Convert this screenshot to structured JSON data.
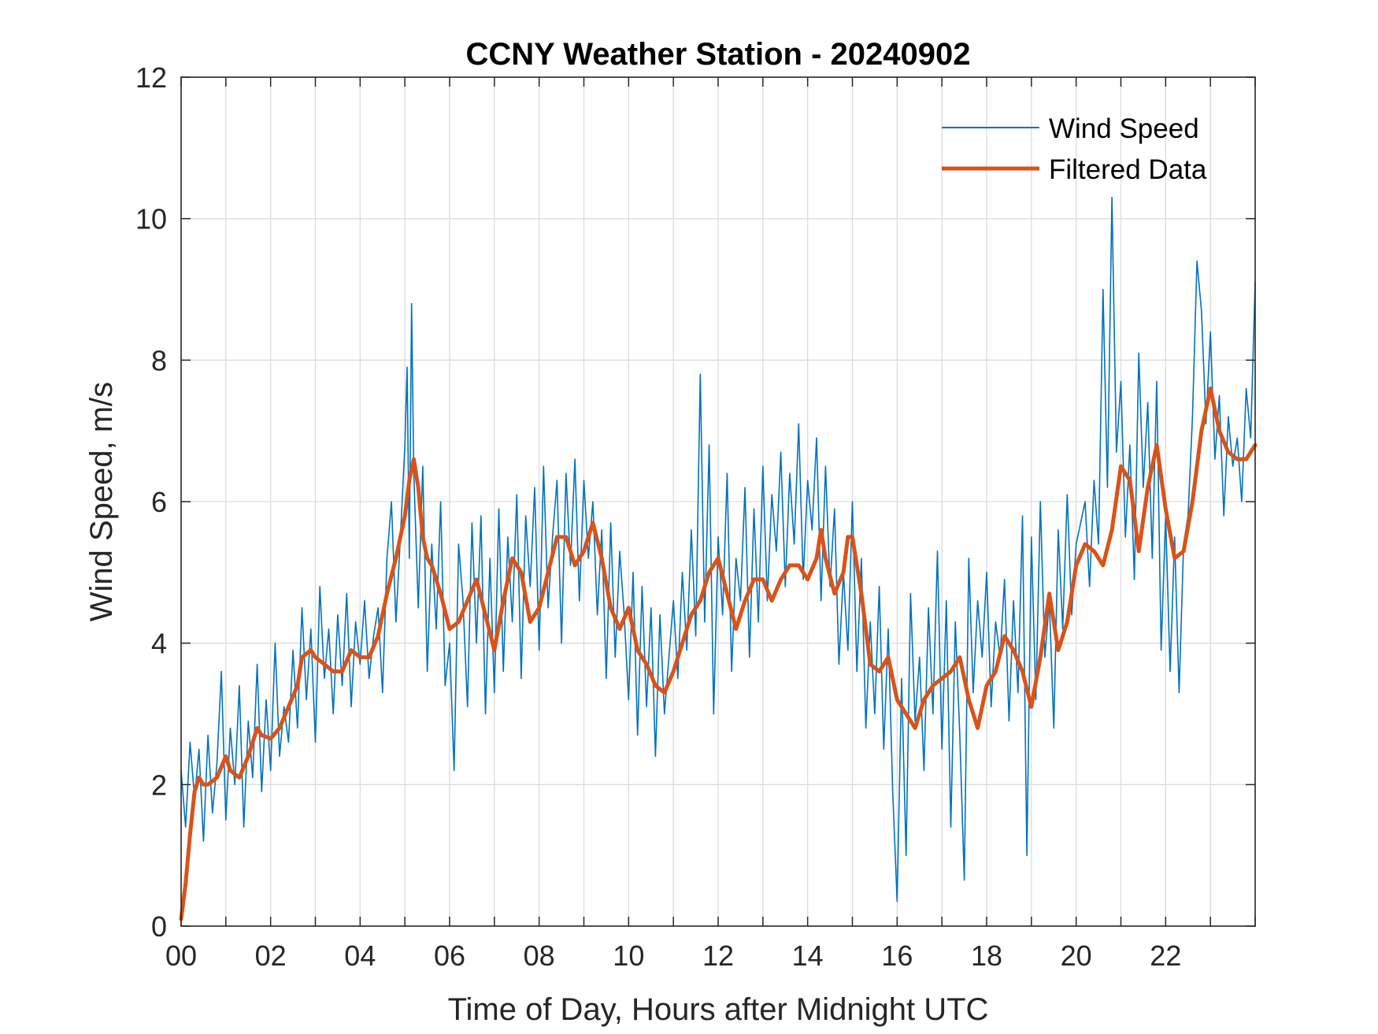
{
  "chart_data": {
    "type": "line",
    "title": "CCNY Weather Station - 20240902",
    "xlabel": "Time of Day, Hours after Midnight UTC",
    "ylabel": "Wind Speed, m/s",
    "xlim": [
      0,
      24
    ],
    "ylim": [
      0,
      12
    ],
    "xticks": [
      0,
      2,
      4,
      6,
      8,
      10,
      12,
      14,
      16,
      18,
      20,
      22
    ],
    "xtick_labels": [
      "00",
      "02",
      "04",
      "06",
      "08",
      "10",
      "12",
      "14",
      "16",
      "18",
      "20",
      "22"
    ],
    "yticks": [
      0,
      2,
      4,
      6,
      8,
      10,
      12
    ],
    "ytick_labels": [
      "0",
      "2",
      "4",
      "6",
      "8",
      "10",
      "12"
    ],
    "grid": true,
    "minor_x_grid_step": 1,
    "legend_position": "top-right",
    "series": [
      {
        "name": "Wind Speed",
        "color": "#0072BD",
        "style": "thin",
        "x": [
          0.0,
          0.1,
          0.2,
          0.3,
          0.4,
          0.5,
          0.6,
          0.7,
          0.8,
          0.9,
          1.0,
          1.1,
          1.2,
          1.3,
          1.4,
          1.5,
          1.6,
          1.7,
          1.8,
          1.9,
          2.0,
          2.1,
          2.2,
          2.3,
          2.4,
          2.5,
          2.6,
          2.7,
          2.8,
          2.9,
          3.0,
          3.1,
          3.2,
          3.3,
          3.4,
          3.5,
          3.6,
          3.7,
          3.8,
          3.9,
          4.0,
          4.1,
          4.2,
          4.3,
          4.4,
          4.5,
          4.6,
          4.7,
          4.8,
          4.9,
          5.0,
          5.05,
          5.1,
          5.15,
          5.2,
          5.3,
          5.4,
          5.5,
          5.6,
          5.7,
          5.8,
          5.9,
          6.0,
          6.1,
          6.2,
          6.3,
          6.4,
          6.5,
          6.6,
          6.7,
          6.8,
          6.9,
          7.0,
          7.1,
          7.2,
          7.3,
          7.4,
          7.5,
          7.6,
          7.7,
          7.8,
          7.9,
          8.0,
          8.1,
          8.2,
          8.3,
          8.4,
          8.5,
          8.6,
          8.7,
          8.8,
          8.9,
          9.0,
          9.1,
          9.2,
          9.3,
          9.4,
          9.5,
          9.6,
          9.7,
          9.8,
          9.9,
          10.0,
          10.1,
          10.2,
          10.3,
          10.4,
          10.5,
          10.6,
          10.7,
          10.8,
          10.9,
          11.0,
          11.1,
          11.2,
          11.3,
          11.4,
          11.5,
          11.6,
          11.7,
          11.8,
          11.9,
          12.0,
          12.1,
          12.2,
          12.3,
          12.4,
          12.5,
          12.6,
          12.7,
          12.8,
          12.9,
          13.0,
          13.1,
          13.2,
          13.3,
          13.4,
          13.5,
          13.6,
          13.7,
          13.8,
          13.9,
          14.0,
          14.1,
          14.2,
          14.3,
          14.4,
          14.5,
          14.6,
          14.7,
          14.8,
          14.9,
          15.0,
          15.1,
          15.2,
          15.3,
          15.4,
          15.5,
          15.6,
          15.7,
          15.8,
          15.9,
          16.0,
          16.1,
          16.2,
          16.3,
          16.4,
          16.5,
          16.6,
          16.7,
          16.8,
          16.9,
          17.0,
          17.1,
          17.2,
          17.3,
          17.4,
          17.5,
          17.6,
          17.7,
          17.8,
          17.9,
          18.0,
          18.1,
          18.2,
          18.3,
          18.4,
          18.5,
          18.6,
          18.7,
          18.8,
          18.9,
          19.0,
          19.1,
          19.2,
          19.3,
          19.4,
          19.5,
          19.6,
          19.7,
          19.8,
          19.9,
          20.0,
          20.1,
          20.2,
          20.3,
          20.4,
          20.5,
          20.6,
          20.7,
          20.8,
          20.9,
          21.0,
          21.1,
          21.2,
          21.3,
          21.4,
          21.5,
          21.6,
          21.7,
          21.8,
          21.9,
          22.0,
          22.1,
          22.2,
          22.3,
          22.4,
          22.5,
          22.6,
          22.7,
          22.8,
          22.9,
          23.0,
          23.1,
          23.2,
          23.3,
          23.4,
          23.5,
          23.6,
          23.7,
          23.8,
          23.9,
          24.0
        ],
        "y": [
          2.2,
          1.4,
          2.6,
          1.8,
          2.5,
          1.2,
          2.7,
          1.6,
          2.3,
          3.6,
          1.5,
          2.8,
          2.0,
          3.4,
          1.4,
          2.9,
          2.1,
          3.7,
          1.9,
          3.2,
          2.2,
          4.0,
          2.4,
          3.1,
          2.6,
          3.9,
          2.8,
          4.5,
          3.2,
          4.2,
          2.6,
          4.8,
          3.5,
          4.2,
          3.0,
          4.4,
          3.4,
          4.7,
          3.1,
          4.3,
          3.7,
          4.6,
          3.5,
          4.1,
          4.5,
          3.3,
          5.2,
          6.0,
          4.3,
          5.5,
          6.8,
          7.9,
          5.2,
          8.8,
          6.4,
          4.5,
          6.5,
          3.6,
          5.4,
          4.2,
          6.0,
          3.4,
          4.0,
          2.2,
          5.4,
          4.6,
          3.1,
          5.7,
          4.0,
          5.8,
          3.0,
          5.2,
          3.3,
          5.9,
          3.6,
          5.5,
          4.3,
          6.1,
          3.5,
          5.8,
          4.8,
          6.2,
          3.9,
          6.5,
          4.5,
          5.5,
          6.3,
          4.0,
          6.4,
          5.1,
          6.6,
          4.6,
          6.3,
          5.2,
          6.0,
          4.4,
          5.6,
          3.5,
          5.7,
          3.8,
          5.3,
          4.4,
          3.2,
          5.0,
          2.7,
          4.8,
          3.1,
          4.5,
          2.4,
          4.4,
          3.0,
          3.8,
          4.6,
          3.5,
          5.0,
          3.9,
          5.6,
          4.1,
          7.8,
          4.3,
          6.8,
          3.0,
          5.5,
          4.4,
          6.4,
          3.6,
          5.2,
          4.6,
          6.2,
          3.8,
          5.9,
          4.3,
          6.5,
          4.6,
          6.1,
          5.3,
          6.7,
          4.8,
          6.4,
          5.4,
          7.1,
          4.9,
          6.3,
          5.6,
          6.9,
          4.6,
          6.5,
          4.8,
          5.9,
          3.7,
          5.0,
          3.9,
          6.0,
          3.6,
          5.2,
          2.8,
          4.3,
          3.0,
          4.8,
          2.5,
          4.2,
          1.9,
          0.35,
          3.5,
          1.0,
          4.7,
          2.9,
          3.8,
          2.2,
          4.5,
          3.0,
          5.3,
          2.5,
          4.6,
          1.4,
          4.3,
          2.7,
          0.65,
          5.2,
          3.3,
          4.6,
          3.8,
          5.0,
          3.1,
          4.3,
          3.8,
          4.9,
          2.9,
          4.6,
          3.3,
          5.8,
          1.0,
          5.5,
          3.2,
          6.0,
          3.8,
          4.6,
          2.8,
          5.6,
          4.2,
          6.1,
          4.4,
          5.4,
          5.7,
          6.0,
          4.8,
          6.3,
          5.4,
          9.0,
          6.2,
          10.3,
          6.7,
          7.7,
          5.5,
          6.8,
          4.9,
          8.1,
          6.2,
          7.4,
          5.2,
          7.7,
          3.9,
          5.8,
          3.6,
          5.5,
          3.3,
          5.4,
          5.8,
          7.2,
          9.4,
          8.7,
          7.1,
          8.4,
          6.6,
          7.5,
          5.8,
          7.2,
          6.5,
          6.9,
          6.0,
          7.6,
          6.9,
          9.1
        ]
      },
      {
        "name": "Filtered Data",
        "color": "#D95319",
        "style": "thick",
        "x": [
          0.0,
          0.1,
          0.2,
          0.3,
          0.4,
          0.5,
          0.6,
          0.8,
          1.0,
          1.1,
          1.3,
          1.5,
          1.7,
          1.8,
          2.0,
          2.2,
          2.4,
          2.6,
          2.7,
          2.9,
          3.0,
          3.2,
          3.4,
          3.6,
          3.8,
          4.0,
          4.2,
          4.4,
          4.6,
          4.8,
          5.0,
          5.1,
          5.2,
          5.3,
          5.4,
          5.5,
          5.6,
          5.8,
          6.0,
          6.2,
          6.4,
          6.6,
          6.8,
          7.0,
          7.2,
          7.4,
          7.6,
          7.8,
          8.0,
          8.2,
          8.4,
          8.6,
          8.8,
          9.0,
          9.2,
          9.4,
          9.6,
          9.8,
          10.0,
          10.2,
          10.4,
          10.6,
          10.8,
          11.0,
          11.2,
          11.4,
          11.6,
          11.8,
          12.0,
          12.2,
          12.4,
          12.6,
          12.8,
          13.0,
          13.2,
          13.4,
          13.6,
          13.8,
          14.0,
          14.2,
          14.3,
          14.4,
          14.6,
          14.8,
          14.9,
          15.0,
          15.2,
          15.4,
          15.6,
          15.8,
          16.0,
          16.2,
          16.4,
          16.6,
          16.8,
          17.0,
          17.2,
          17.4,
          17.6,
          17.8,
          18.0,
          18.2,
          18.4,
          18.6,
          18.8,
          19.0,
          19.2,
          19.4,
          19.6,
          19.8,
          20.0,
          20.2,
          20.4,
          20.6,
          20.8,
          21.0,
          21.2,
          21.4,
          21.6,
          21.8,
          22.0,
          22.2,
          22.4,
          22.6,
          22.8,
          23.0,
          23.2,
          23.4,
          23.6,
          23.8,
          24.0
        ],
        "y": [
          0.1,
          0.6,
          1.3,
          1.9,
          2.1,
          2.0,
          2.0,
          2.1,
          2.4,
          2.2,
          2.1,
          2.4,
          2.8,
          2.7,
          2.65,
          2.8,
          3.1,
          3.4,
          3.8,
          3.9,
          3.8,
          3.7,
          3.6,
          3.6,
          3.9,
          3.8,
          3.8,
          4.1,
          4.7,
          5.2,
          5.8,
          6.3,
          6.6,
          6.2,
          5.5,
          5.2,
          5.1,
          4.7,
          4.2,
          4.3,
          4.6,
          4.9,
          4.4,
          3.9,
          4.6,
          5.2,
          5.0,
          4.3,
          4.5,
          5.0,
          5.5,
          5.5,
          5.1,
          5.3,
          5.7,
          5.2,
          4.5,
          4.2,
          4.5,
          3.9,
          3.7,
          3.4,
          3.3,
          3.6,
          4.0,
          4.4,
          4.6,
          5.0,
          5.2,
          4.7,
          4.2,
          4.6,
          4.9,
          4.9,
          4.6,
          4.9,
          5.1,
          5.1,
          4.9,
          5.2,
          5.6,
          5.2,
          4.7,
          5.0,
          5.5,
          5.5,
          4.7,
          3.7,
          3.6,
          3.8,
          3.2,
          3.0,
          2.8,
          3.2,
          3.4,
          3.5,
          3.6,
          3.8,
          3.2,
          2.8,
          3.4,
          3.6,
          4.1,
          3.9,
          3.6,
          3.1,
          3.8,
          4.7,
          3.9,
          4.3,
          5.1,
          5.4,
          5.3,
          5.1,
          5.6,
          6.5,
          6.3,
          5.3,
          6.2,
          6.8,
          5.9,
          5.2,
          5.3,
          6.0,
          7.0,
          7.6,
          7.0,
          6.7,
          6.6,
          6.6,
          6.8
        ]
      }
    ]
  }
}
